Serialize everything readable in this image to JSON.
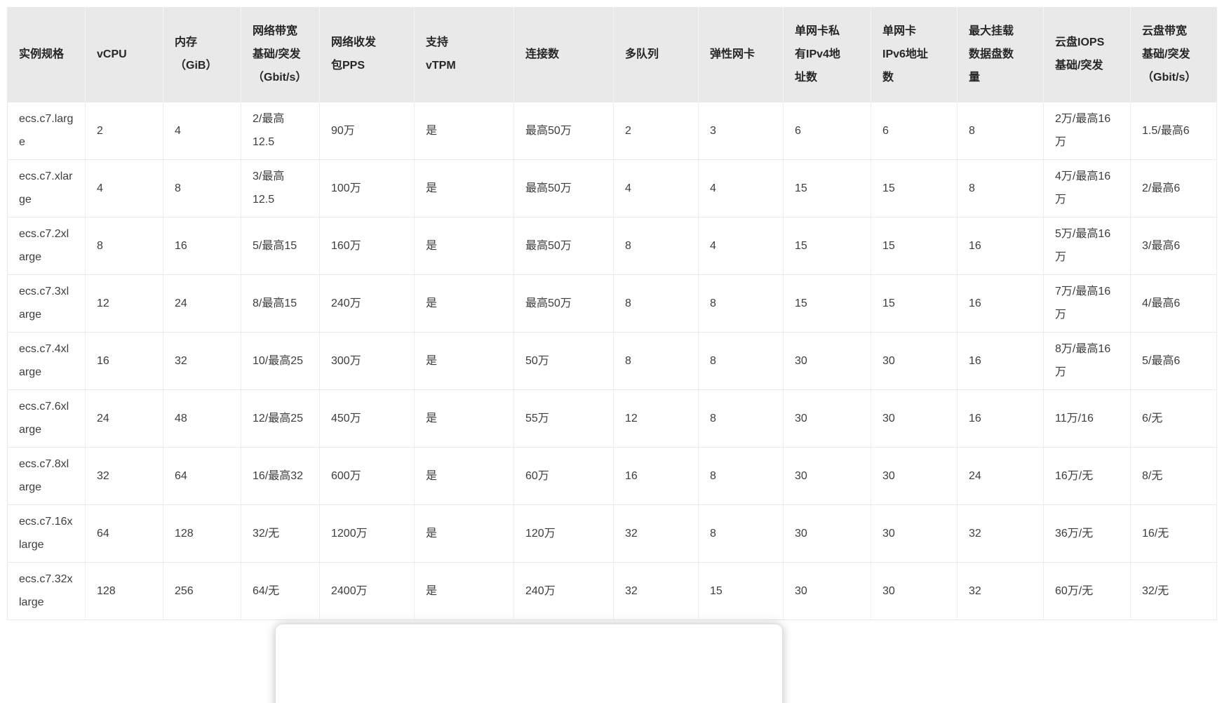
{
  "page": {
    "background": "#ffffff",
    "header_bg": "#e9e9e9",
    "border_color": "#ebebeb",
    "header_text_color": "#262626",
    "body_text_color": "#3d3d3d"
  },
  "table": {
    "name": "ecs-c7-instance-specs",
    "columns": [
      "实例规格",
      "vCPU",
      "内存（GiB）",
      "网络带宽基础/突发（Gbit/s）",
      "网络收发包PPS",
      "支持vTPM",
      "连接数",
      "多队列",
      "弹性网卡",
      "单网卡私有IPv4地址数",
      "单网卡IPv6地址数",
      "最大挂载数据盘数量",
      "云盘IOPS基础/突发",
      "云盘带宽基础/突发（Gbit/s）"
    ],
    "rows": [
      [
        "ecs.c7.large",
        "2",
        "4",
        "2/最高12.5",
        "90万",
        "是",
        "最高50万",
        "2",
        "3",
        "6",
        "6",
        "8",
        "2万/最高16万",
        "1.5/最高6"
      ],
      [
        "ecs.c7.xlarge",
        "4",
        "8",
        "3/最高12.5",
        "100万",
        "是",
        "最高50万",
        "4",
        "4",
        "15",
        "15",
        "8",
        "4万/最高16万",
        "2/最高6"
      ],
      [
        "ecs.c7.2xlarge",
        "8",
        "16",
        "5/最高15",
        "160万",
        "是",
        "最高50万",
        "8",
        "4",
        "15",
        "15",
        "16",
        "5万/最高16万",
        "3/最高6"
      ],
      [
        "ecs.c7.3xlarge",
        "12",
        "24",
        "8/最高15",
        "240万",
        "是",
        "最高50万",
        "8",
        "8",
        "15",
        "15",
        "16",
        "7万/最高16万",
        "4/最高6"
      ],
      [
        "ecs.c7.4xlarge",
        "16",
        "32",
        "10/最高25",
        "300万",
        "是",
        "50万",
        "8",
        "8",
        "30",
        "30",
        "16",
        "8万/最高16万",
        "5/最高6"
      ],
      [
        "ecs.c7.6xlarge",
        "24",
        "48",
        "12/最高25",
        "450万",
        "是",
        "55万",
        "12",
        "8",
        "30",
        "30",
        "16",
        "11万/16",
        "6/无"
      ],
      [
        "ecs.c7.8xlarge",
        "32",
        "64",
        "16/最高32",
        "600万",
        "是",
        "60万",
        "16",
        "8",
        "30",
        "30",
        "24",
        "16万/无",
        "8/无"
      ],
      [
        "ecs.c7.16xlarge",
        "64",
        "128",
        "32/无",
        "1200万",
        "是",
        "120万",
        "32",
        "8",
        "30",
        "30",
        "32",
        "36万/无",
        "16/无"
      ],
      [
        "ecs.c7.32xlarge",
        "128",
        "256",
        "64/无",
        "2400万",
        "是",
        "240万",
        "32",
        "15",
        "30",
        "30",
        "32",
        "60万/无",
        "32/无"
      ]
    ]
  }
}
